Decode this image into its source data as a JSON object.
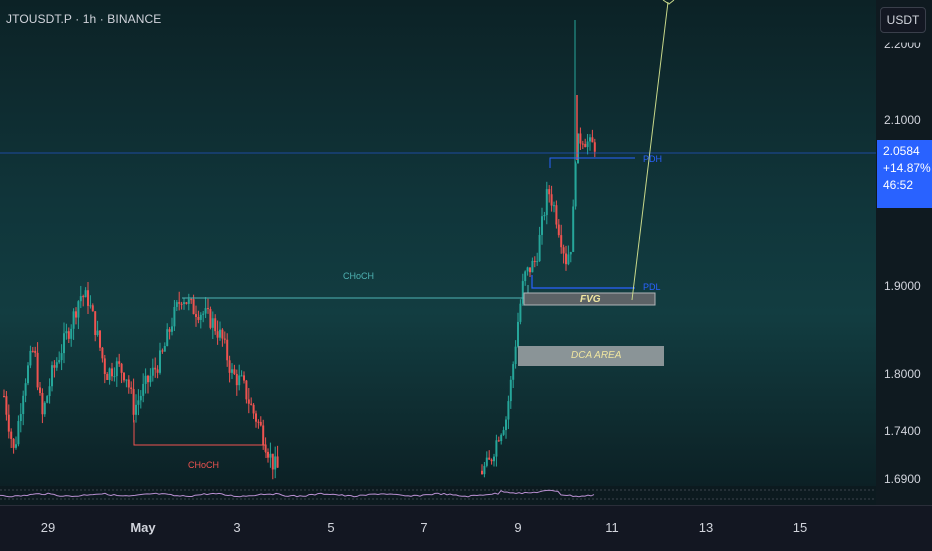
{
  "header": {
    "symbol": "JTOUSDT.P · 1h · BINANCE"
  },
  "axis_button": {
    "currency": "USDT"
  },
  "price_axis": {
    "ticks": [
      "2.2000",
      "2.1000",
      "1.9000",
      "1.8000",
      "1.7400",
      "1.6900"
    ]
  },
  "time_axis": {
    "ticks": [
      "29",
      "May",
      "3",
      "5",
      "7",
      "9",
      "11",
      "13",
      "15"
    ]
  },
  "last_price": {
    "price": "2.0584",
    "change": "+14.87%",
    "countdown": "46:52",
    "color": "#2962ff"
  },
  "annotations": {
    "choch_top": "CHoCH",
    "choch_bottom": "CHoCH",
    "pdh": "PDH",
    "pdl": "PDL",
    "fvg": "FVG",
    "dca": "DCA AREA"
  },
  "colors": {
    "up": "#26a69a",
    "down": "#ef5350",
    "teal_line": "#4fb3b3",
    "blue_line": "#2962ff",
    "projection": "#c8d88a",
    "oscillator": "#b98fd1"
  },
  "chart_data": {
    "type": "candlestick",
    "symbol": "JTOUSDT.P",
    "interval": "1h",
    "exchange": "BINANCE",
    "last_price": 2.0584,
    "change_percent": "+14.87%",
    "y_axis_ticks": [
      2.2,
      2.1,
      1.9,
      1.8,
      1.74,
      1.69
    ],
    "x_axis_ticks": [
      "29",
      "May",
      "3",
      "5",
      "7",
      "9",
      "11",
      "13",
      "15"
    ],
    "approx_price_path": [
      {
        "x": "Apr 28",
        "y": 1.78
      },
      {
        "x": "Apr 29",
        "y": 1.85
      },
      {
        "x": "Apr 30",
        "y": 1.89
      },
      {
        "x": "May 1",
        "y": 1.78
      },
      {
        "x": "May 2",
        "y": 1.87
      },
      {
        "x": "May 3",
        "y": 1.8
      },
      {
        "x": "May 4",
        "y": 1.69
      },
      {
        "x": "May 8",
        "y": 1.68
      },
      {
        "x": "May 9",
        "y": 1.92
      },
      {
        "x": "May 10",
        "y": 2.06
      }
    ],
    "levels": [
      {
        "label": "PDH",
        "y": 2.055
      },
      {
        "label": "PDL",
        "y": 1.9
      },
      {
        "label": "CHoCH",
        "y": 1.89
      },
      {
        "label": "CHoCH",
        "y": 1.733
      }
    ],
    "zones": [
      {
        "label": "FVG",
        "from": 1.881,
        "to": 1.894
      },
      {
        "label": "DCA AREA",
        "from": 1.818,
        "to": 1.841
      }
    ]
  }
}
